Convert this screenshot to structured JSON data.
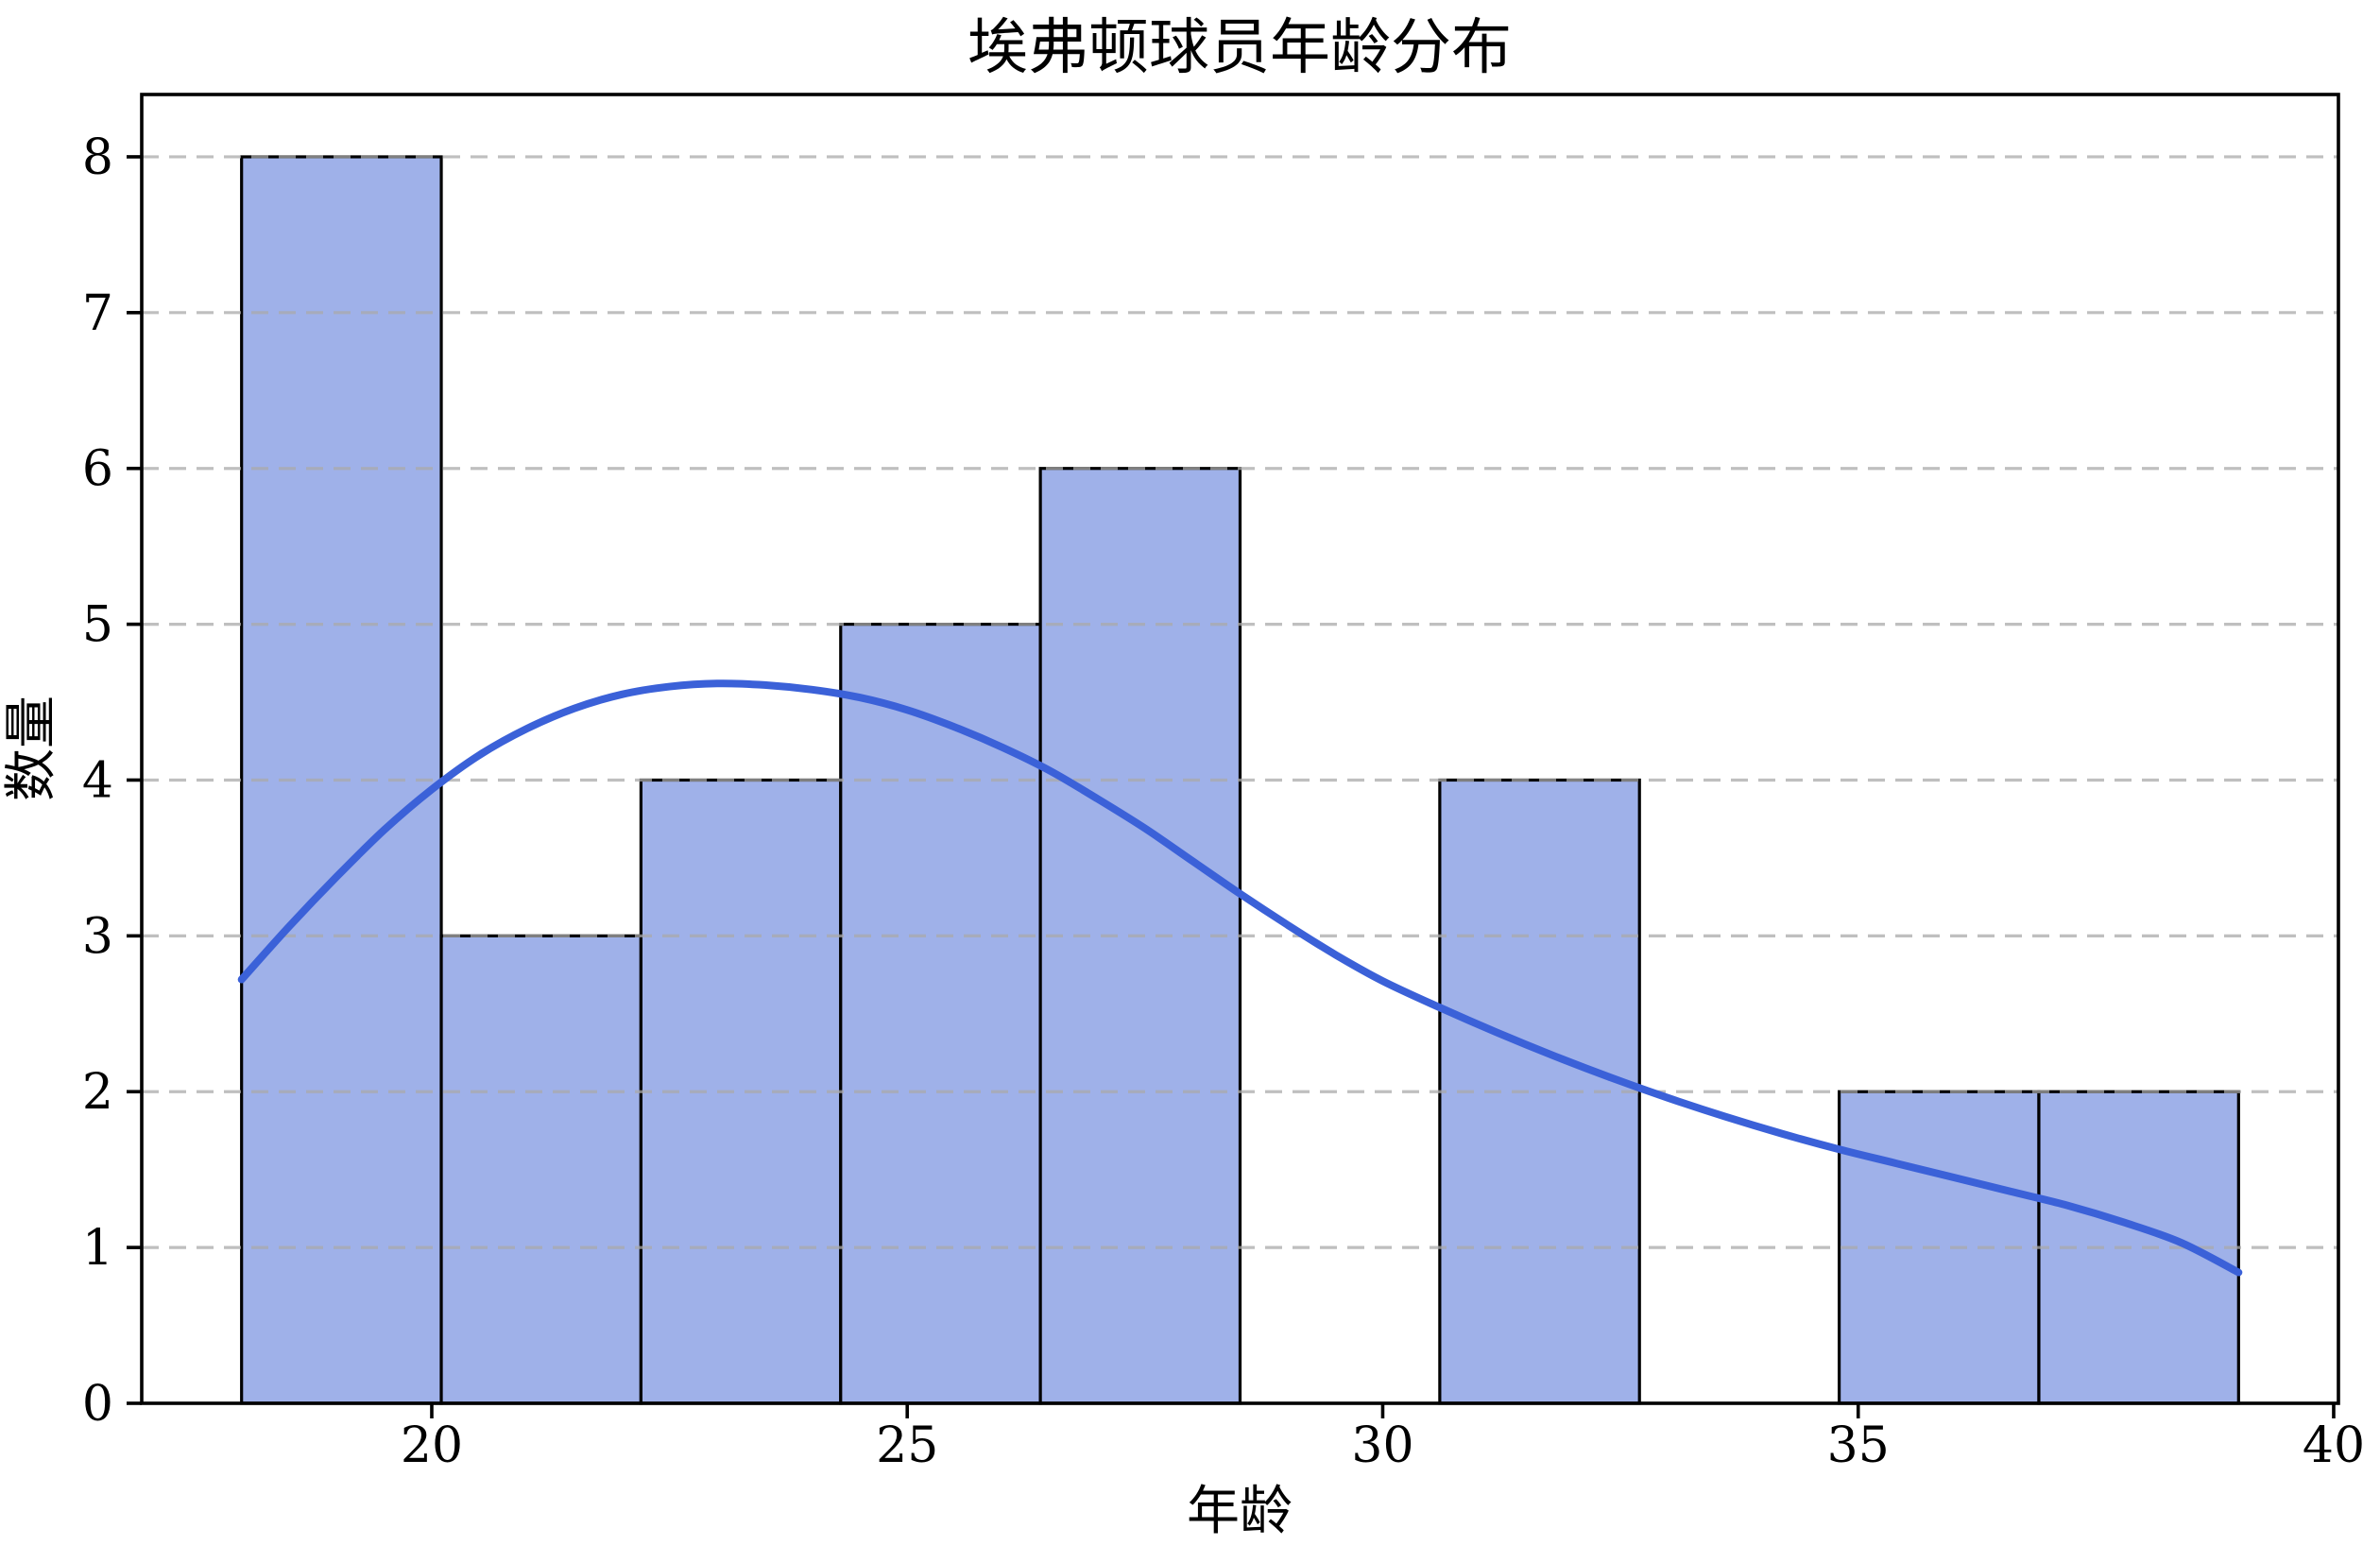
{
  "figure": {
    "title": "埃弗顿球员年龄分布",
    "xlabel": "年龄",
    "ylabel": "数量"
  },
  "chart_data": {
    "type": "histogram",
    "title": "埃弗顿球员年龄分布",
    "xlabel": "年龄",
    "ylabel": "数量",
    "bin_edges": [
      18.0,
      20.1,
      22.2,
      24.3,
      26.4,
      28.5,
      30.6,
      32.7,
      34.8,
      36.9,
      39.0
    ],
    "counts": [
      8,
      3,
      4,
      5,
      6,
      0,
      4,
      0,
      2,
      2
    ],
    "kde_curve": {
      "x": [
        18.0,
        18.5,
        19.0,
        19.5,
        20.0,
        20.5,
        21.0,
        21.5,
        22.0,
        22.5,
        23.0,
        23.5,
        24.0,
        24.5,
        25.0,
        25.5,
        26.0,
        26.5,
        27.0,
        27.5,
        28.0,
        28.5,
        29.0,
        29.5,
        30.0,
        30.6,
        31.2,
        31.8,
        32.4,
        33.0,
        33.6,
        34.2,
        34.8,
        35.4,
        36.0,
        36.6,
        37.2,
        37.8,
        38.4,
        39.0
      ],
      "y": [
        2.72,
        3.06,
        3.38,
        3.68,
        3.94,
        4.16,
        4.33,
        4.46,
        4.55,
        4.6,
        4.62,
        4.61,
        4.58,
        4.53,
        4.45,
        4.34,
        4.21,
        4.06,
        3.88,
        3.69,
        3.48,
        3.27,
        3.07,
        2.88,
        2.71,
        2.54,
        2.38,
        2.23,
        2.09,
        1.96,
        1.84,
        1.73,
        1.63,
        1.54,
        1.45,
        1.36,
        1.27,
        1.16,
        1.03,
        0.84
      ]
    },
    "xticks": [
      20,
      25,
      30,
      35,
      40
    ],
    "yticks": [
      0,
      1,
      2,
      3,
      4,
      5,
      6,
      7,
      8
    ],
    "xlim": [
      16.95,
      40.05
    ],
    "ylim": [
      0,
      8.4
    ],
    "grid": "horizontal-dashed",
    "legend": null,
    "colors": {
      "bar_fill": "#9fb1e9",
      "bar_edge": "#000000",
      "kde_line": "#3b61d8",
      "grid": "#aaaaaa",
      "axis": "#000000",
      "text": "#000000",
      "background": "#ffffff"
    }
  }
}
